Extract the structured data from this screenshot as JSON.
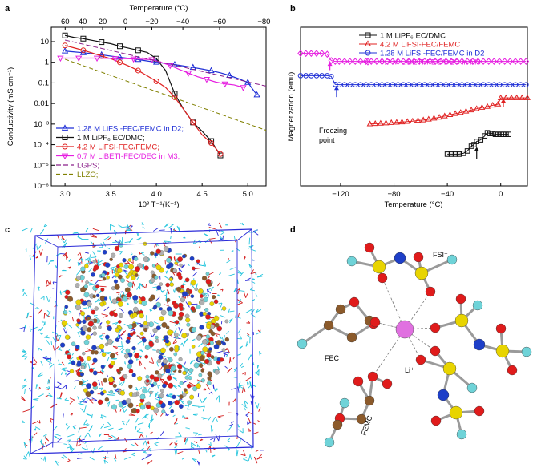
{
  "panels": {
    "a": "a",
    "b": "b",
    "c": "c",
    "d": "d"
  },
  "chart_data": [
    {
      "panel": "a",
      "type": "line",
      "xlabel": "10³ T⁻¹(K⁻¹)",
      "ylabel": "Conductivity (mS cm⁻¹)",
      "top_axis_label": "Temperature (°C)",
      "xlim": [
        2.85,
        5.2
      ],
      "ylim_log10": [
        -6,
        1.7
      ],
      "x_ticks": [
        "3.0",
        "3.5",
        "4.0",
        "4.5",
        "5.0"
      ],
      "x_tick_values": [
        3.0,
        3.5,
        4.0,
        4.5,
        5.0
      ],
      "y_ticks": [
        "10",
        "1",
        "0.1",
        "0.01",
        "10⁻³",
        "10⁻⁴",
        "10⁻⁵",
        "10⁻⁶"
      ],
      "y_tick_exponents": [
        1,
        0,
        -1,
        -2,
        -3,
        -4,
        -5,
        -6
      ],
      "top_ticks": [
        "60",
        "40",
        "20",
        "0",
        "−20",
        "−40",
        "−60",
        "−80"
      ],
      "top_tick_celsius": [
        60,
        40,
        20,
        0,
        -20,
        -40,
        -60,
        -80
      ],
      "legend_position": "bottom-left",
      "series": [
        {
          "name": "1.28 M LiFSI-FEC/FEMC in D2;",
          "color": "#1f2fd6",
          "marker": "triangle",
          "x": [
            3.0,
            3.1,
            3.2,
            3.3,
            3.4,
            3.5,
            3.6,
            3.7,
            3.8,
            3.9,
            4.0,
            4.1,
            4.2,
            4.3,
            4.4,
            4.5,
            4.6,
            4.7,
            4.8,
            4.9,
            5.0,
            5.1
          ],
          "y": [
            3.5,
            3.2,
            2.9,
            2.6,
            2.3,
            2.0,
            1.75,
            1.55,
            1.35,
            1.15,
            1.0,
            0.88,
            0.77,
            0.66,
            0.56,
            0.47,
            0.39,
            0.31,
            0.23,
            0.16,
            0.105,
            0.026
          ]
        },
        {
          "name": "1 M LiPF₆ EC/DMC;",
          "color": "#111111",
          "marker": "square",
          "x": [
            3.0,
            3.1,
            3.2,
            3.3,
            3.4,
            3.5,
            3.6,
            3.7,
            3.8,
            3.9,
            4.0,
            4.1,
            4.2,
            4.3,
            4.4,
            4.5,
            4.6,
            4.7
          ],
          "y": [
            20,
            16,
            14,
            11.5,
            9.5,
            8,
            6,
            4.8,
            3.8,
            3.0,
            1.5,
            0.4,
            0.03,
            0.005,
            0.0012,
            0.00045,
            0.00015,
            3e-05
          ]
        },
        {
          "name": "4.2 M LiFSI-FEC/FEMC;",
          "color": "#e02020",
          "marker": "circle",
          "x": [
            3.0,
            3.1,
            3.2,
            3.3,
            3.4,
            3.5,
            3.6,
            3.7,
            3.8,
            3.9,
            4.0,
            4.1,
            4.2,
            4.3,
            4.4,
            4.5,
            4.6,
            4.7
          ],
          "y": [
            6.5,
            5.0,
            3.8,
            2.8,
            2.0,
            1.5,
            1.0,
            0.65,
            0.4,
            0.22,
            0.12,
            0.06,
            0.02,
            0.005,
            0.0012,
            0.0003,
            0.00012,
            3.5e-05
          ]
        },
        {
          "name": "0.7 M LiBETI-FEC/DEC in M3;",
          "color": "#e61ee0",
          "marker": "triangle-down",
          "x": [
            2.95,
            3.05,
            3.15,
            3.25,
            3.35,
            3.45,
            3.55,
            3.65,
            3.75,
            3.85,
            3.95,
            4.05,
            4.15,
            4.25,
            4.35,
            4.45,
            4.55,
            4.65,
            4.75,
            4.85,
            4.95
          ],
          "y": [
            1.6,
            1.6,
            1.6,
            1.6,
            1.6,
            1.55,
            1.5,
            1.5,
            1.45,
            1.4,
            1.35,
            1.0,
            0.7,
            0.45,
            0.3,
            0.2,
            0.15,
            0.11,
            0.09,
            0.08,
            0.06
          ]
        },
        {
          "name": "LGPS;",
          "color": "#8a1e8a",
          "marker": "none",
          "dash": "6,3",
          "x": [
            3.0,
            5.2
          ],
          "y": [
            12.0,
            0.07
          ]
        },
        {
          "name": "LLZO;",
          "color": "#808000",
          "marker": "none",
          "dash": "5,3",
          "x": [
            3.0,
            5.2
          ],
          "y": [
            1.4,
            0.0005
          ]
        }
      ]
    },
    {
      "panel": "b",
      "type": "scatter",
      "xlabel": "Temperature (°C)",
      "ylabel": "Magnetization (emu)",
      "xlim": [
        -150,
        20
      ],
      "ylim": [
        0,
        10
      ],
      "x_ticks": [
        "−120",
        "−80",
        "−40",
        "0"
      ],
      "x_tick_values": [
        -120,
        -80,
        -40,
        0
      ],
      "legend_position": "top-right",
      "series": [
        {
          "name": "1 M LiPF₆ EC/DMC",
          "color": "#111111",
          "marker": "square",
          "x": [
            -40,
            -37,
            -34,
            -31,
            -28,
            -25,
            -22,
            -20,
            -18,
            -15,
            -12,
            -10,
            -8,
            -6,
            -4,
            -2,
            0,
            2,
            4,
            6
          ],
          "y": [
            2.0,
            2.0,
            2.0,
            2.0,
            2.05,
            2.2,
            2.5,
            2.6,
            2.8,
            2.9,
            3.15,
            3.35,
            3.3,
            3.3,
            3.25,
            3.25,
            3.25,
            3.25,
            3.25,
            3.25
          ]
        },
        {
          "name": "4.2 M LiFSI-FEC/FEMC",
          "color": "#e02020",
          "marker": "triangle",
          "x": [
            -98,
            -94,
            -90,
            -86,
            -82,
            -78,
            -74,
            -70,
            -66,
            -62,
            -58,
            -54,
            -50,
            -46,
            -42,
            -38,
            -34,
            -30,
            -26,
            -22,
            -18,
            -14,
            -10,
            -6,
            -2,
            0,
            4,
            8,
            12,
            16,
            20
          ],
          "y": [
            3.9,
            3.92,
            3.94,
            3.96,
            3.98,
            4.0,
            4.02,
            4.05,
            4.08,
            4.12,
            4.15,
            4.2,
            4.26,
            4.32,
            4.4,
            4.48,
            4.55,
            4.62,
            4.7,
            4.78,
            4.86,
            4.94,
            5.0,
            5.08,
            5.15,
            5.55,
            5.55,
            5.55,
            5.55,
            5.55,
            5.55
          ]
        },
        {
          "name": "1.28 M LiFSI-FEC/FEMC in D2",
          "color": "#1f2fd6",
          "marker": "circle",
          "x": [
            -150,
            -146,
            -142,
            -138,
            -134,
            -130,
            -127,
            -124,
            -121,
            -117,
            -113,
            -109,
            -105,
            -101,
            -97,
            -93,
            -89,
            -85,
            -81,
            -77,
            -73,
            -69,
            -65,
            -61,
            -57,
            -53,
            -49,
            -45,
            -41,
            -37,
            -33,
            -29,
            -25,
            -21,
            -17,
            -13,
            -9,
            -5,
            -1,
            3,
            7,
            11,
            15,
            19
          ],
          "y": [
            6.95,
            6.95,
            6.95,
            6.95,
            6.95,
            6.95,
            6.9,
            6.4,
            6.38,
            6.38,
            6.38,
            6.38,
            6.38,
            6.38,
            6.38,
            6.38,
            6.38,
            6.38,
            6.38,
            6.38,
            6.38,
            6.38,
            6.38,
            6.38,
            6.38,
            6.38,
            6.38,
            6.38,
            6.38,
            6.38,
            6.38,
            6.38,
            6.38,
            6.38,
            6.38,
            6.38,
            6.38,
            6.38,
            6.38,
            6.38,
            6.38,
            6.38,
            6.38,
            6.38
          ]
        },
        {
          "name": "0.7 M LiBETI-FEC/DEC in M3",
          "color": "#e61ee0",
          "marker": "diamond",
          "x": [
            -150,
            -146,
            -142,
            -138,
            -134,
            -130,
            -127,
            -124,
            -121,
            -117,
            -113,
            -109,
            -105,
            -101,
            -97,
            -93,
            -89,
            -85,
            -81,
            -77,
            -73,
            -69,
            -65,
            -61,
            -57,
            -53,
            -49,
            -45,
            -41,
            -37,
            -33,
            -29,
            -25,
            -21,
            -17,
            -13,
            -9,
            -5,
            -1,
            3,
            7,
            11,
            15,
            19
          ],
          "y": [
            8.35,
            8.35,
            8.35,
            8.35,
            8.35,
            8.3,
            7.9,
            7.85,
            7.85,
            7.85,
            7.85,
            7.85,
            7.85,
            7.85,
            7.85,
            7.85,
            7.85,
            7.85,
            7.85,
            7.85,
            7.85,
            7.85,
            7.85,
            7.85,
            7.85,
            7.85,
            7.85,
            7.85,
            7.85,
            7.85,
            7.85,
            7.85,
            7.85,
            7.85,
            7.85,
            7.85,
            7.85,
            7.85,
            7.85,
            7.85,
            7.85,
            7.85,
            7.85,
            7.85
          ]
        }
      ],
      "annotations": [
        {
          "text_lines": [
            "Freezing",
            "point"
          ]
        }
      ]
    }
  ],
  "panel_c": {
    "type": "simulation-box"
  },
  "panel_d": {
    "labels": {
      "fsi": "FSI⁻",
      "fec": "FEC",
      "femc": "FEMC",
      "li": "Li⁺"
    },
    "colors": {
      "carbon": "#8b5a2b",
      "oxygen": "#e01b1b",
      "sulfur": "#e8d400",
      "nitrogen": "#1e3fc8",
      "fluorine": "#6fd3d8",
      "lithium": "#e070e0"
    }
  }
}
